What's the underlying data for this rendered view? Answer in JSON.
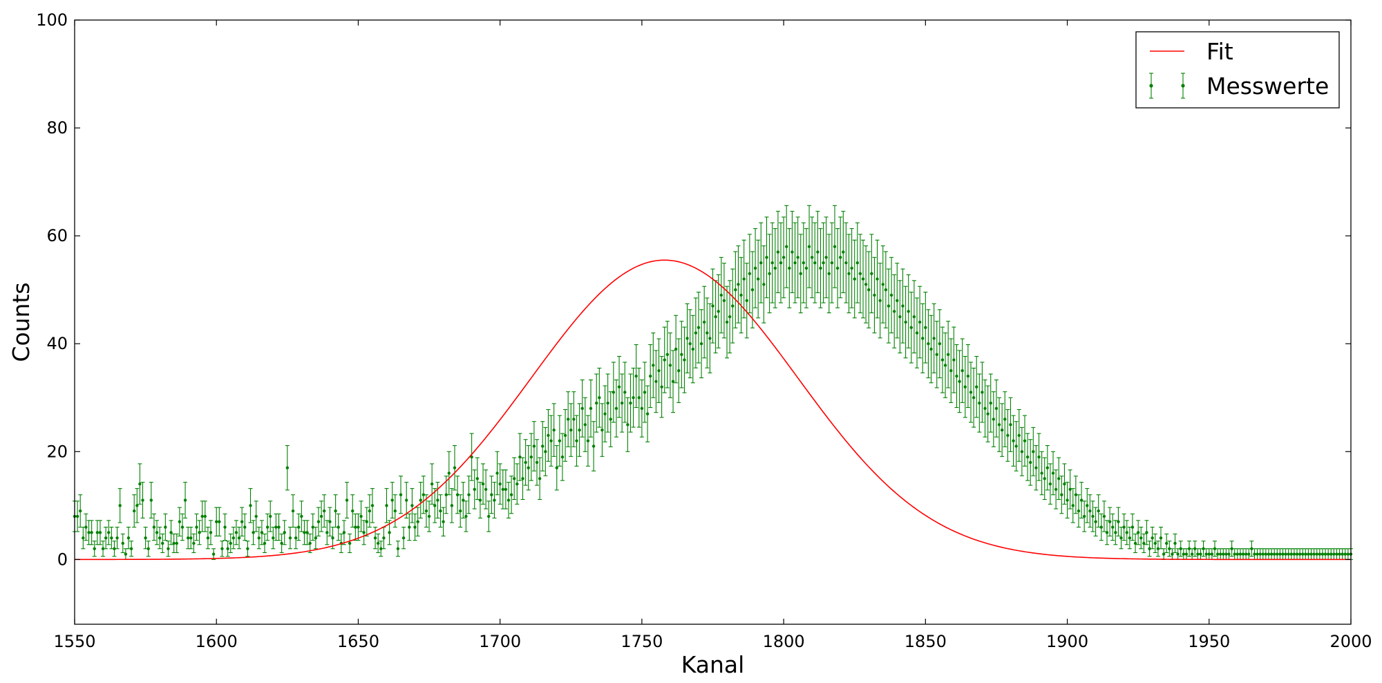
{
  "chart_data": {
    "type": "scatter",
    "xlabel": "Kanal",
    "ylabel": "Counts",
    "xlim": [
      1550,
      2000
    ],
    "ylim": [
      -12,
      100
    ],
    "xticks": [
      "1550",
      "1600",
      "1650",
      "1700",
      "1750",
      "1800",
      "1850",
      "1900",
      "1950",
      "2000"
    ],
    "yticks": [
      "0",
      "20",
      "40",
      "60",
      "80",
      "100"
    ],
    "grid": false,
    "legend": {
      "placement": "top-right",
      "entries": [
        "Fit",
        "Messwerte"
      ]
    },
    "colors": {
      "fit": "#ff0000",
      "measurements": "#008000"
    },
    "fit": {
      "name": "Fit",
      "model": "gaussian",
      "amplitude": 55.5,
      "center": 1758,
      "sigma": 47
    },
    "series": [
      {
        "name": "Messwerte",
        "x_start": 1550,
        "x_step": 1,
        "error": "sqrt",
        "values": [
          8,
          8,
          9,
          4,
          6,
          5,
          5,
          2,
          5,
          5,
          2,
          4,
          5,
          4,
          2,
          4,
          10,
          3,
          1,
          4,
          2,
          9,
          10,
          14,
          11,
          4,
          2,
          11,
          6,
          5,
          4,
          3,
          6,
          2,
          5,
          3,
          3,
          7,
          6,
          11,
          4,
          4,
          3,
          6,
          5,
          8,
          8,
          4,
          5,
          1,
          7,
          7,
          2,
          6,
          2,
          3,
          4,
          5,
          4,
          7,
          6,
          2,
          10,
          5,
          8,
          4,
          5,
          3,
          6,
          8,
          4,
          6,
          6,
          3,
          5,
          17,
          4,
          9,
          4,
          6,
          8,
          5,
          5,
          3,
          6,
          4,
          7,
          8,
          9,
          5,
          7,
          4,
          9,
          6,
          3,
          5,
          11,
          3,
          9,
          6,
          6,
          8,
          5,
          7,
          9,
          10,
          4,
          3,
          2,
          4,
          10,
          5,
          11,
          9,
          2,
          12,
          4,
          11,
          6,
          10,
          6,
          7,
          11,
          12,
          9,
          8,
          14,
          10,
          11,
          9,
          7,
          12,
          16,
          10,
          17,
          12,
          9,
          11,
          8,
          12,
          19,
          13,
          15,
          11,
          14,
          13,
          8,
          12,
          11,
          16,
          14,
          13,
          13,
          11,
          12,
          15,
          14,
          19,
          15,
          18,
          17,
          19,
          21,
          18,
          15,
          21,
          20,
          23,
          22,
          24,
          17,
          22,
          19,
          23,
          26,
          24,
          26,
          22,
          24,
          28,
          25,
          22,
          28,
          21,
          29,
          30,
          24,
          27,
          29,
          26,
          31,
          28,
          32,
          29,
          31,
          25,
          29,
          30,
          34,
          30,
          28,
          31,
          27,
          34,
          36,
          33,
          35,
          32,
          37,
          38,
          36,
          33,
          39,
          35,
          38,
          37,
          41,
          40,
          39,
          42,
          43,
          40,
          44,
          42,
          41,
          47,
          45,
          46,
          49,
          48,
          44,
          45,
          47,
          50,
          51,
          49,
          52,
          48,
          53,
          50,
          54,
          52,
          55,
          51,
          56,
          53,
          55,
          54,
          57,
          55,
          56,
          58,
          54,
          57,
          55,
          56,
          53,
          55,
          54,
          58,
          56,
          55,
          57,
          54,
          55,
          56,
          53,
          55,
          58,
          54,
          56,
          57,
          55,
          53,
          54,
          52,
          55,
          53,
          52,
          51,
          50,
          53,
          49,
          52,
          48,
          51,
          50,
          47,
          49,
          46,
          48,
          45,
          47,
          44,
          46,
          43,
          45,
          42,
          44,
          41,
          43,
          40,
          39,
          41,
          38,
          40,
          37,
          36,
          38,
          35,
          37,
          34,
          33,
          35,
          32,
          34,
          31,
          30,
          32,
          29,
          31,
          28,
          27,
          29,
          26,
          28,
          25,
          24,
          26,
          23,
          25,
          22,
          21,
          23,
          20,
          22,
          19,
          18,
          20,
          17,
          19,
          16,
          15,
          17,
          14,
          16,
          13,
          15,
          12,
          14,
          11,
          13,
          10,
          12,
          9,
          11,
          8,
          10,
          9,
          8,
          7,
          9,
          6,
          8,
          5,
          7,
          6,
          5,
          7,
          4,
          6,
          5,
          4,
          6,
          3,
          5,
          4,
          3,
          5,
          2,
          4,
          3,
          2,
          4,
          1,
          3,
          2,
          1,
          3,
          1,
          2,
          1,
          1,
          2,
          1,
          2,
          1,
          1,
          2,
          1,
          1,
          1,
          2,
          1,
          1,
          1,
          1,
          1,
          2,
          1,
          1,
          1,
          1,
          1,
          1,
          2,
          1,
          1,
          1,
          1,
          1,
          1,
          1,
          1,
          1,
          1,
          1,
          1,
          1,
          1,
          1,
          1,
          1,
          1,
          1,
          1,
          1,
          1,
          1,
          1,
          1,
          1,
          1,
          1,
          1,
          1,
          1,
          1,
          1,
          1,
          1,
          1,
          1,
          1,
          1,
          1,
          1
        ]
      }
    ]
  }
}
